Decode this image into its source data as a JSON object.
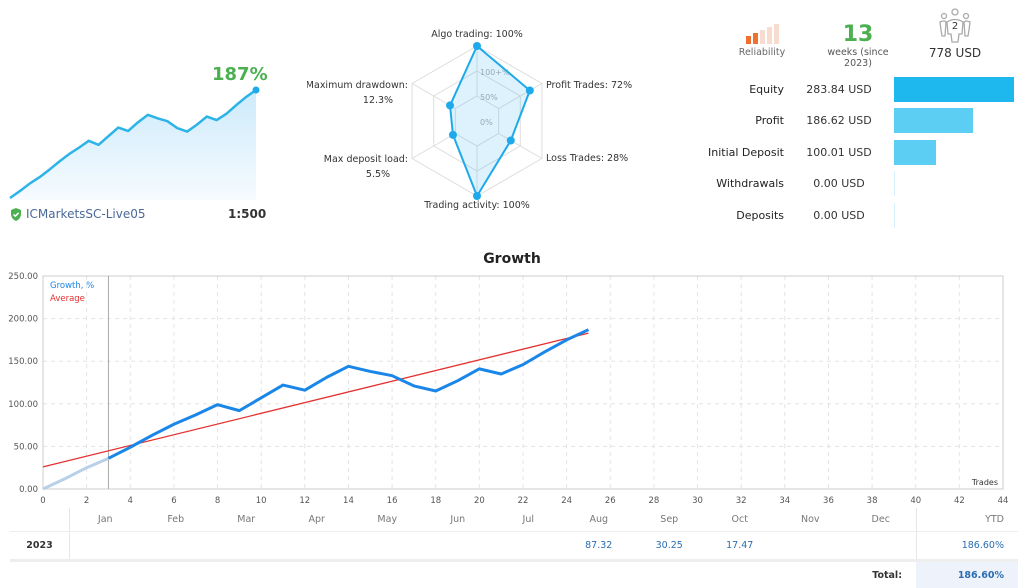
{
  "summary": {
    "growth_pct": "187%",
    "server": "ICMarketsSC-Live05",
    "leverage": "1:500"
  },
  "radar": {
    "axes": [
      {
        "label": "Algo trading: 100%",
        "value": 100
      },
      {
        "label": "Profit Trades: 72%",
        "value": 72
      },
      {
        "label": "Loss Trades: 28%",
        "value": 28
      },
      {
        "label": "Trading activity: 100%",
        "value": 100
      },
      {
        "label": "Max deposit load:",
        "sub": "5.5%",
        "value": 5.5
      },
      {
        "label": "Maximum drawdown:",
        "sub": "12.3%",
        "value": 12.3
      }
    ],
    "ring_labels": [
      "0%",
      "50%",
      "100+%"
    ]
  },
  "reliability": {
    "label": "Reliability",
    "level": 2,
    "of": 5,
    "color": "#f07030"
  },
  "weeks": {
    "value": "13",
    "label": "weeks (since 2023)"
  },
  "subscribers": {
    "count": "2",
    "value": "778 USD"
  },
  "stats": [
    {
      "label": "Equity",
      "value": "283.84 USD",
      "amount": 283.84,
      "color": "#1eb8ee"
    },
    {
      "label": "Profit",
      "value": "186.62 USD",
      "amount": 186.62,
      "color": "#5ccdf3"
    },
    {
      "label": "Initial Deposit",
      "value": "100.01 USD",
      "amount": 100.01,
      "color": "#5ccdf3"
    },
    {
      "label": "Withdrawals",
      "value": "0.00 USD",
      "amount": 0,
      "color": "#5ccdf3"
    },
    {
      "label": "Deposits",
      "value": "0.00 USD",
      "amount": 0,
      "color": "#5ccdf3"
    }
  ],
  "chart_data": {
    "type": "line",
    "title": "Growth",
    "xlabel": "Trades",
    "xlim": [
      0,
      44
    ],
    "ylim": [
      0,
      250
    ],
    "xticks": [
      0,
      2,
      4,
      6,
      8,
      10,
      12,
      14,
      16,
      18,
      20,
      22,
      24,
      26,
      28,
      30,
      32,
      34,
      36,
      38,
      40,
      42,
      44
    ],
    "yticks": [
      "0.00",
      "50.00",
      "100.00",
      "150.00",
      "200.00",
      "250.00"
    ],
    "grid": true,
    "legend": "top-left",
    "series": [
      {
        "name": "Growth, %",
        "color": "#1a86e8",
        "x": [
          0,
          1,
          2,
          3,
          4,
          5,
          6,
          7,
          8,
          9,
          10,
          11,
          12,
          13,
          14,
          15,
          16,
          17,
          18,
          19,
          20,
          21,
          22,
          23,
          24,
          25
        ],
        "y": [
          0,
          12,
          25,
          36,
          49,
          63,
          76,
          87,
          99,
          92,
          107,
          122,
          116,
          131,
          144,
          138,
          133,
          121,
          115,
          127,
          141,
          135,
          146,
          161,
          175,
          187
        ]
      },
      {
        "name": "Average",
        "color": "#e53030",
        "x": [
          0,
          25
        ],
        "y": [
          26,
          183
        ]
      }
    ],
    "marker_x": 3
  },
  "table": {
    "months": [
      "Jan",
      "Feb",
      "Mar",
      "Apr",
      "May",
      "Jun",
      "Jul",
      "Aug",
      "Sep",
      "Oct",
      "Nov",
      "Dec"
    ],
    "ytd_label": "YTD",
    "rows": [
      {
        "year": "2023",
        "values": [
          "",
          "",
          "",
          "",
          "",
          "",
          "",
          "87.32",
          "30.25",
          "17.47",
          "",
          ""
        ],
        "ytd": "186.60%"
      }
    ],
    "total_label": "Total:",
    "total": "186.60%"
  }
}
